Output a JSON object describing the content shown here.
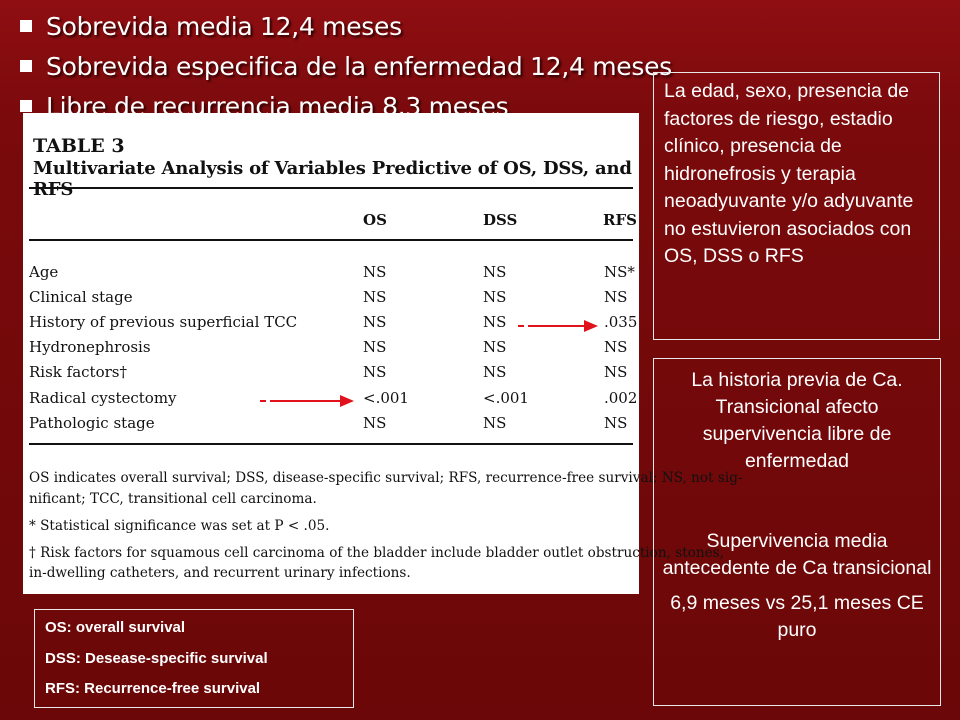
{
  "bullets": [
    "Sobrevida media 12,4 meses",
    "Sobrevida especifica de la enfermedad 12,4 meses",
    "Libre de recurrencia media 8.3 meses"
  ],
  "table": {
    "title": "TABLE 3",
    "subtitle": "Multivariate Analysis of Variables Predictive of OS, DSS, and RFS",
    "columns": [
      "OS",
      "DSS",
      "RFS"
    ],
    "rows": [
      {
        "variable": "Age",
        "os": "NS",
        "dss": "NS",
        "rfs": "NS*"
      },
      {
        "variable": "Clinical stage",
        "os": "NS",
        "dss": "NS",
        "rfs": "NS"
      },
      {
        "variable": "History of previous superficial TCC",
        "os": "NS",
        "dss": "NS",
        "rfs": ".035"
      },
      {
        "variable": "Hydronephrosis",
        "os": "NS",
        "dss": "NS",
        "rfs": "NS"
      },
      {
        "variable": "Risk factors†",
        "os": "NS",
        "dss": "NS",
        "rfs": "NS"
      },
      {
        "variable": "Radical cystectomy",
        "os": "<.001",
        "dss": "<.001",
        "rfs": ".002"
      },
      {
        "variable": "Pathologic stage",
        "os": "NS",
        "dss": "NS",
        "rfs": "NS"
      }
    ],
    "footnotes": [
      "OS indicates overall survival; DSS, disease-specific survival; RFS, recurrence-free survival; NS, not sig-",
      "nificant; TCC, transitional cell carcinoma.",
      "* Statistical significance was set at P < .05.",
      "†  Risk factors for squamous cell carcinoma of the bladder include bladder outlet obstruction, stones,",
      "in-dwelling catheters, and recurrent urinary infections."
    ]
  },
  "side_note_1": "La edad, sexo, presencia de factores de riesgo, estadio clínico, presencia de hidronefrosis y terapia neoadyuvante y/o adyuvante no estuvieron asociados con OS, DSS o RFS",
  "side_note_2": {
    "p1": "La historia previa de Ca. Transicional afecto supervivencia libre de enfermedad",
    "p2": "Supervivencia media antecedente de Ca transicional",
    "p3": "6,9 meses vs 25,1 meses CE puro"
  },
  "legend": [
    "OS: overall survival",
    "DSS: Desease-specific survival",
    "RFS: Recurrence-free survival"
  ],
  "colors": {
    "background": "#7a0a0c",
    "arrow": "#e0121c",
    "box_border": "#e8e8e8"
  }
}
